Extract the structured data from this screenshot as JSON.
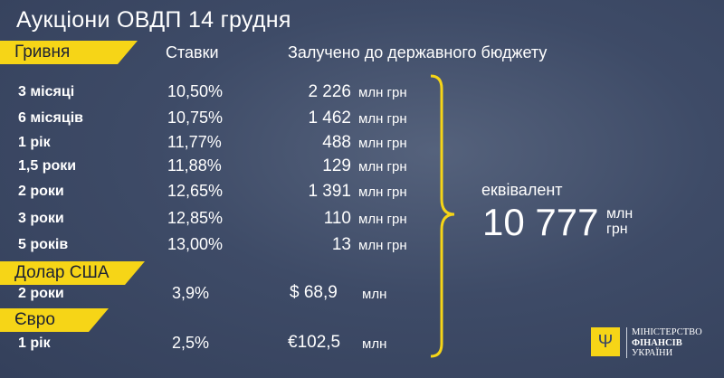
{
  "title": "Аукціони ОВДП 14 грудня",
  "headers": {
    "currency_uah": "Гривня",
    "rates": "Ставки",
    "raised": "Залучено до державного бюджету"
  },
  "uah_rows": [
    {
      "term": "3 місяці",
      "rate": "10,50%",
      "amount": "2 226",
      "unit": "млн грн"
    },
    {
      "term": "6 місяців",
      "rate": "10,75%",
      "amount": "1 462",
      "unit": "млн грн"
    },
    {
      "term": "1 рік",
      "rate": "11,77%",
      "amount": "488",
      "unit": "млн грн"
    },
    {
      "term": "1,5 роки",
      "rate": "11,88%",
      "amount": "129",
      "unit": "млн грн"
    },
    {
      "term": "2 роки",
      "rate": "12,65%",
      "amount": "1 391",
      "unit": "млн грн"
    },
    {
      "term": "3 роки",
      "rate": "12,85%",
      "amount": "110",
      "unit": "млн грн"
    },
    {
      "term": "5 років",
      "rate": "13,00%",
      "amount": "13",
      "unit": "млн грн"
    }
  ],
  "usd": {
    "label": "Долар США",
    "term": "2 роки",
    "rate": "3,9%",
    "amount": "$ 68,9",
    "unit": "млн"
  },
  "eur": {
    "label": "Євро",
    "term": "1 рік",
    "rate": "2,5%",
    "amount": "€102,5",
    "unit": "млн"
  },
  "total": {
    "label": "еквівалент",
    "value": "10 777",
    "unit_line1": "млн",
    "unit_line2": "грн"
  },
  "logo": {
    "line1": "МІНІСТЕРСТВО",
    "line2": "ФІНАНСІВ",
    "line3": "УКРАЇНИ"
  },
  "colors": {
    "accent": "#f6d517",
    "background": "#3b4864"
  }
}
